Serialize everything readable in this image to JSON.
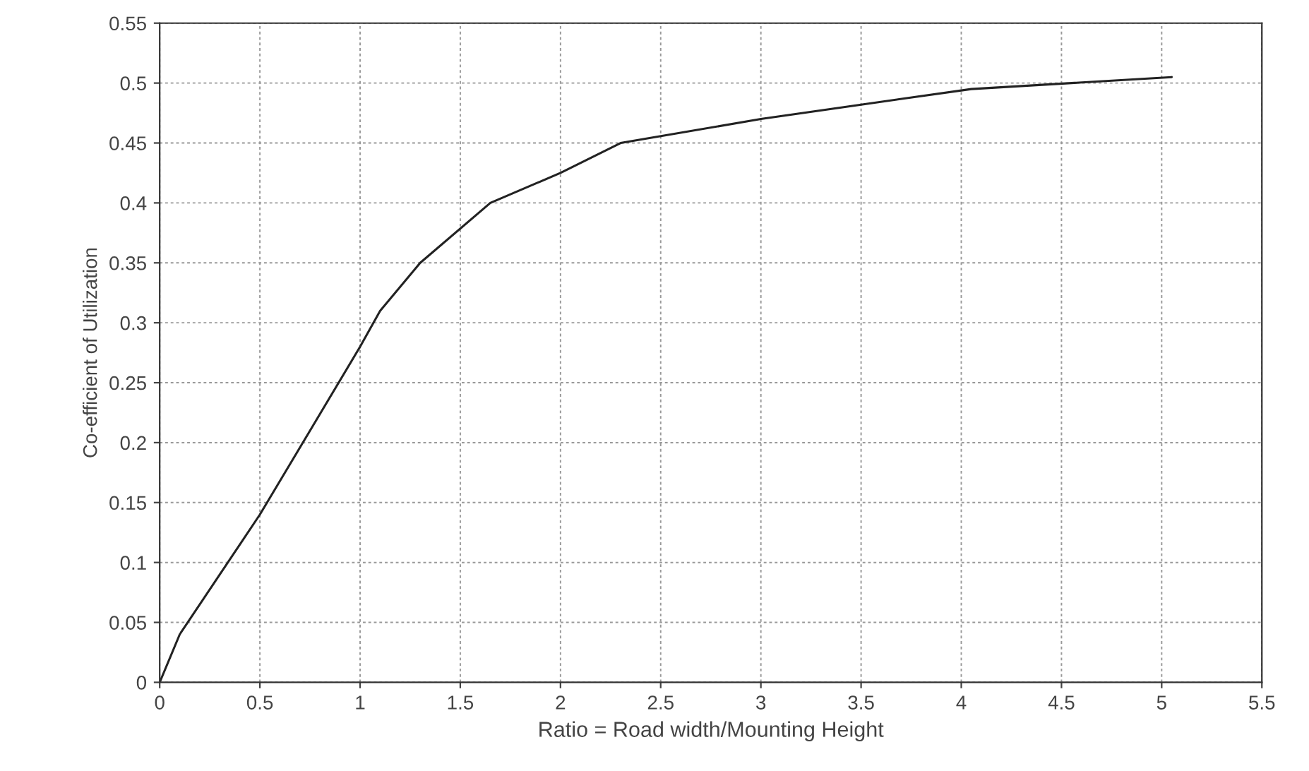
{
  "chart_data": {
    "type": "line",
    "xlabel": "Ratio = Road width/Mounting Height",
    "ylabel": "Co-efficient of Utilization",
    "x": [
      0,
      0.1,
      0.5,
      0.75,
      1.0,
      1.1,
      1.3,
      1.65,
      2.0,
      2.3,
      3.0,
      3.5,
      4.05,
      5.05
    ],
    "series": [
      {
        "color": "#222222",
        "values": [
          0,
          0.04,
          0.14,
          0.21,
          0.28,
          0.31,
          0.35,
          0.4,
          0.425,
          0.45,
          0.47,
          0.482,
          0.495,
          0.505
        ]
      }
    ],
    "xlim": [
      0,
      5.5
    ],
    "xticks": [
      0,
      0.5,
      1,
      1.5,
      2,
      2.5,
      3,
      3.5,
      4,
      4.5,
      5,
      5.5
    ],
    "ylim": [
      0,
      0.55
    ],
    "yticks": [
      0,
      0.05,
      0.1,
      0.15,
      0.2,
      0.25,
      0.3,
      0.35,
      0.4,
      0.45,
      0.5,
      0.55
    ],
    "grid": true,
    "line_style": "solid"
  }
}
